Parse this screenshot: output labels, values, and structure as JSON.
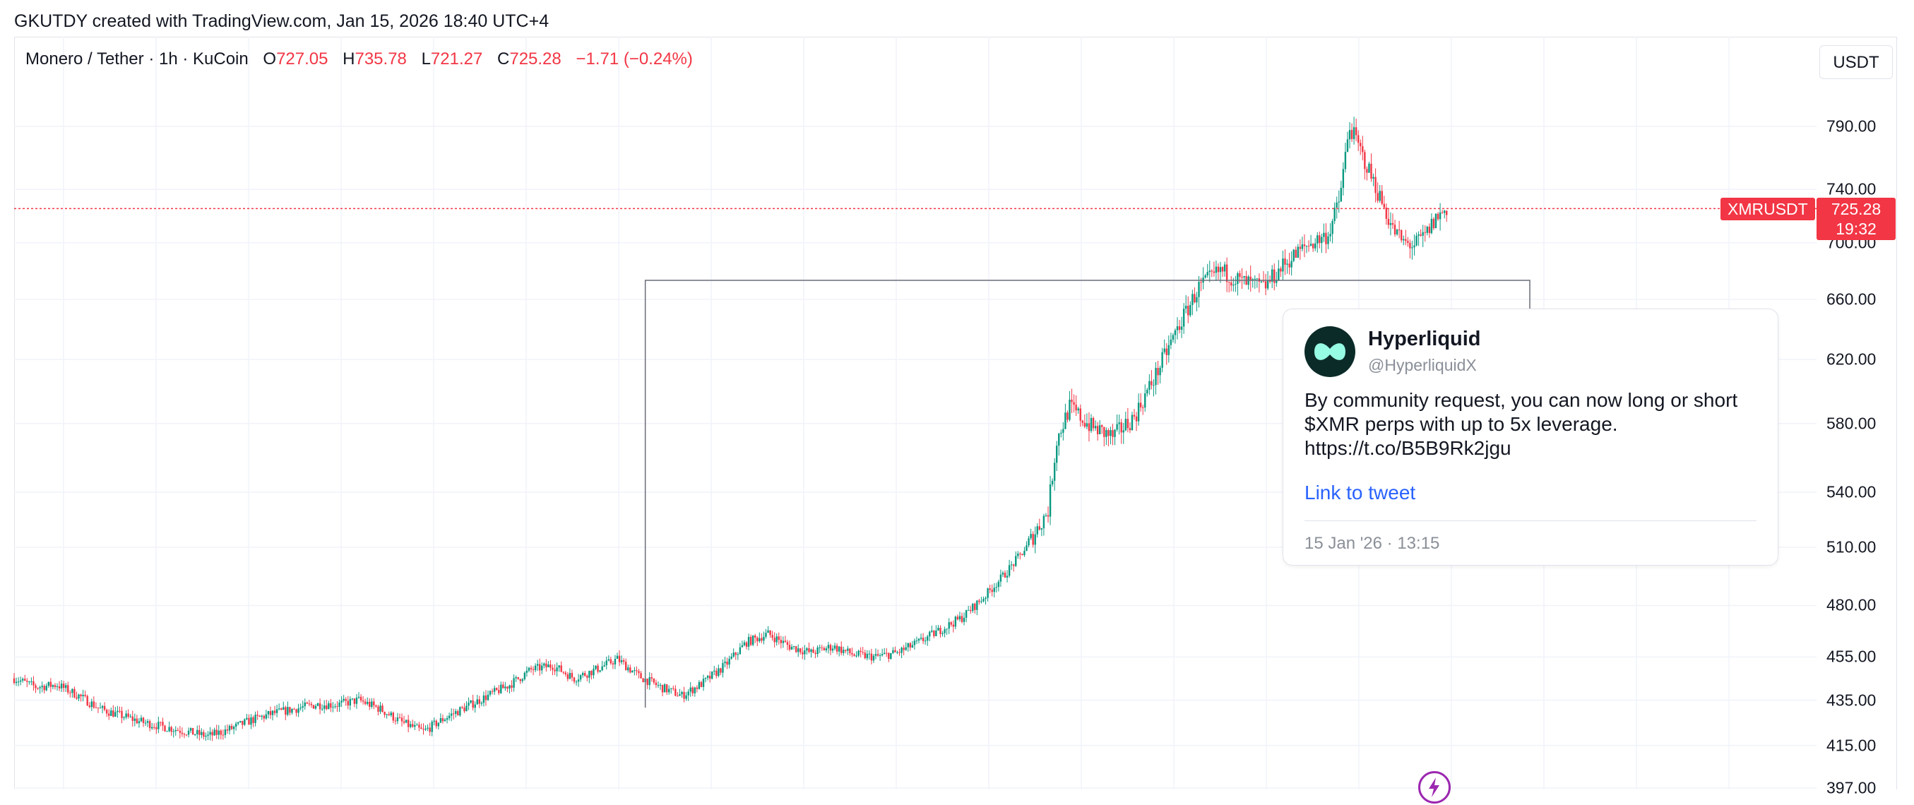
{
  "header": {
    "created_line": "GKUTDY created with TradingView.com, Jan 15, 2026 18:40 UTC+4"
  },
  "legend": {
    "symbol": "Monero / Tether · 1h · KuCoin",
    "open_label": "O",
    "open": "727.05",
    "high_label": "H",
    "high": "735.78",
    "low_label": "L",
    "low": "721.27",
    "close_label": "C",
    "close": "725.28",
    "change": "−1.71 (−0.24%)"
  },
  "currency_button": "USDT",
  "price_tag": {
    "symbol": "XMRUSDT",
    "price": "725.28",
    "countdown": "19:32"
  },
  "tweet": {
    "name": "Hyperliquid",
    "handle": "@HyperliquidX",
    "text_lines": [
      "By community request, you can now long or short",
      "$XMR perps with up to 5x leverage.",
      "https://t.co/B5B9Rk2jgu"
    ],
    "link_label": "Link to tweet",
    "date": "15 Jan '26 · 13:15"
  },
  "icons": {
    "avatar": "hyperliquid-logo-icon",
    "bottom": "lightning-bolt-icon"
  },
  "colors": {
    "up": "#089981",
    "down": "#f23645",
    "grid": "#f0f3fa",
    "accent": "#2962ff"
  },
  "chart_data": {
    "type": "candlestick",
    "symbol": "XMRUSDT",
    "timeframe": "1h",
    "y_scale": "log",
    "y_ticks": [
      397,
      415,
      435,
      455,
      480,
      510,
      540,
      580,
      620,
      660,
      700,
      740,
      790
    ],
    "ylim": [
      397,
      810
    ],
    "last_price": 725.28,
    "annotation_candle_index": 293,
    "close_path": [
      [
        0,
        445
      ],
      [
        10,
        441
      ],
      [
        20,
        442
      ],
      [
        30,
        437
      ],
      [
        40,
        431
      ],
      [
        50,
        428
      ],
      [
        60,
        425
      ],
      [
        70,
        423
      ],
      [
        80,
        421
      ],
      [
        90,
        419
      ],
      [
        100,
        422
      ],
      [
        110,
        426
      ],
      [
        120,
        429
      ],
      [
        130,
        431
      ],
      [
        140,
        433
      ],
      [
        150,
        433
      ],
      [
        160,
        435
      ],
      [
        170,
        431
      ],
      [
        180,
        425
      ],
      [
        190,
        421
      ],
      [
        200,
        427
      ],
      [
        210,
        432
      ],
      [
        220,
        437
      ],
      [
        230,
        442
      ],
      [
        240,
        449
      ],
      [
        250,
        451
      ],
      [
        260,
        445
      ],
      [
        270,
        449
      ],
      [
        280,
        454
      ],
      [
        290,
        446
      ],
      [
        300,
        441
      ],
      [
        310,
        437
      ],
      [
        320,
        443
      ],
      [
        330,
        451
      ],
      [
        340,
        462
      ],
      [
        350,
        466
      ],
      [
        360,
        460
      ],
      [
        370,
        457
      ],
      [
        380,
        460
      ],
      [
        390,
        456
      ],
      [
        400,
        455
      ],
      [
        410,
        457
      ],
      [
        420,
        462
      ],
      [
        430,
        468
      ],
      [
        440,
        474
      ],
      [
        450,
        484
      ],
      [
        460,
        496
      ],
      [
        470,
        510
      ],
      [
        480,
        530
      ],
      [
        484,
        570
      ],
      [
        490,
        590
      ],
      [
        500,
        578
      ],
      [
        510,
        572
      ],
      [
        520,
        584
      ],
      [
        530,
        610
      ],
      [
        540,
        640
      ],
      [
        550,
        668
      ],
      [
        560,
        680
      ],
      [
        570,
        672
      ],
      [
        580,
        668
      ],
      [
        590,
        685
      ],
      [
        600,
        698
      ],
      [
        610,
        706
      ],
      [
        615,
        730
      ],
      [
        620,
        790
      ],
      [
        625,
        770
      ],
      [
        630,
        750
      ],
      [
        635,
        730
      ],
      [
        640,
        710
      ],
      [
        645,
        700
      ],
      [
        650,
        698
      ],
      [
        655,
        705
      ],
      [
        660,
        718
      ],
      [
        665,
        725.28
      ]
    ],
    "candle_count": 666
  }
}
